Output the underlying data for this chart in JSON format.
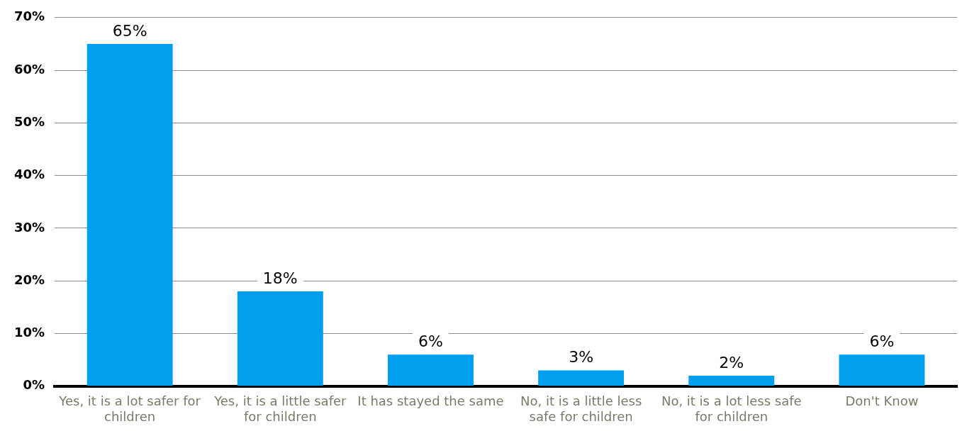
{
  "chart_data": {
    "type": "bar",
    "categories": [
      "Yes, it is a lot safer for children",
      "Yes, it is a little safer for children",
      "It has stayed the same",
      "No, it is a little less safe for children",
      "No, it is a lot less safe for children",
      "Don't Know"
    ],
    "values": [
      65,
      18,
      6,
      3,
      2,
      6
    ],
    "value_labels": [
      "65%",
      "18%",
      "6%",
      "3%",
      "2%",
      "6%"
    ],
    "color": "#009fee",
    "ylim": [
      0,
      70
    ],
    "yticks": [
      {
        "value": 0,
        "label": "0%"
      },
      {
        "value": 10,
        "label": "10%"
      },
      {
        "value": 20,
        "label": "20%"
      },
      {
        "value": 30,
        "label": "30%"
      },
      {
        "value": 40,
        "label": "40%"
      },
      {
        "value": 50,
        "label": "50%"
      },
      {
        "value": 60,
        "label": "60%"
      },
      {
        "value": 70,
        "label": "70%"
      }
    ],
    "grid": "y",
    "legend": false
  }
}
